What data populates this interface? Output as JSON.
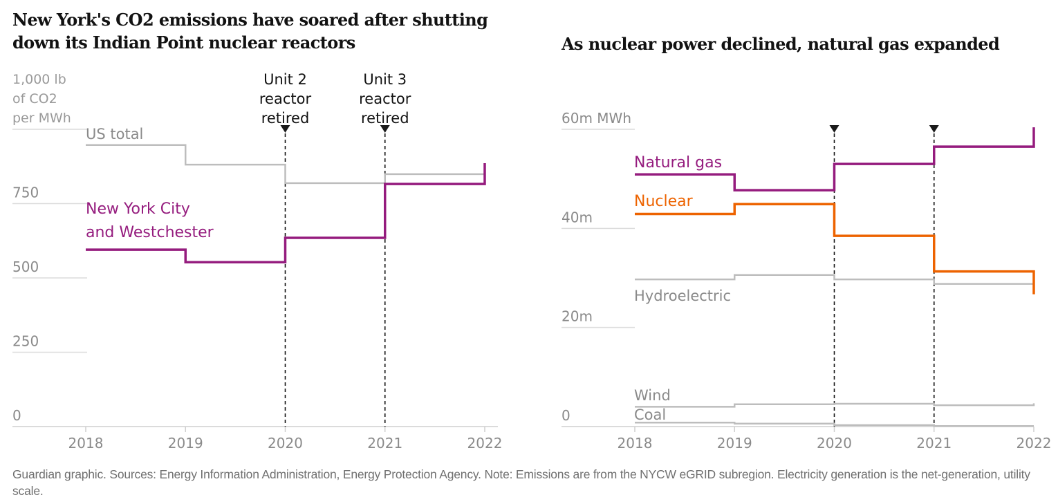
{
  "titles": {
    "left": "New York's CO2 emissions have soared after shutting down its Indian Point nuclear reactors",
    "right": "As nuclear power declined, natural gas expanded"
  },
  "footer": "Guardian graphic. Sources: Energy Information Administration, Energy Protection Agency. Note: Emissions are from the NYCW eGRID subregion. Electricity generation is the net-generation, utility scale.",
  "colors": {
    "purple": "#951c7e",
    "orange": "#ed6300",
    "gray_line": "#bdbdbd",
    "grid": "#dcdcdc",
    "annotation": "#121212"
  },
  "chart_data": [
    {
      "type": "line",
      "step": true,
      "title": "New York's CO2 emissions have soared after shutting down its Indian Point nuclear reactors",
      "ylabel": "1,000 lb of CO2 per MWh",
      "ylabel_lines": [
        "1,000 lb",
        "of CO2",
        "per MWh"
      ],
      "xlabel": "",
      "x": [
        2018,
        2019,
        2020,
        2021,
        2022
      ],
      "xlim": [
        2018,
        2022
      ],
      "ylim": [
        0,
        1000
      ],
      "yticks": [
        0,
        250,
        500,
        750,
        1000
      ],
      "ytick_labels": [
        "0",
        "250",
        "500",
        "750",
        ""
      ],
      "xtick_labels": [
        "2018",
        "2019",
        "2020",
        "2021",
        "2022"
      ],
      "grid": true,
      "series": [
        {
          "name": "US total",
          "label_lines": [
            "US total"
          ],
          "color_key": "gray_line",
          "values": [
            947,
            881,
            819,
            849
          ],
          "end_value": null
        },
        {
          "name": "New York City and Westchester",
          "label_lines": [
            "New York City",
            "and Westchester"
          ],
          "color_key": "purple",
          "values": [
            595,
            553,
            635,
            816
          ],
          "end_value": 886
        }
      ],
      "annotations": [
        {
          "x": 2020,
          "lines": [
            "Unit 2",
            "reactor",
            "retired"
          ]
        },
        {
          "x": 2021,
          "lines": [
            "Unit 3",
            "reactor",
            "retired"
          ]
        }
      ]
    },
    {
      "type": "line",
      "step": true,
      "title": "As nuclear power declined, natural gas expanded",
      "ylabel": "MWh",
      "xlabel": "",
      "x": [
        2018,
        2019,
        2020,
        2021,
        2022
      ],
      "xlim": [
        2018,
        2022
      ],
      "ylim": [
        0,
        60
      ],
      "yticks": [
        0,
        20,
        40,
        60
      ],
      "ytick_labels": [
        "0",
        "20m",
        "40m",
        "60m MWh"
      ],
      "xtick_labels": [
        "2018",
        "2019",
        "2020",
        "2021",
        "2022"
      ],
      "grid": true,
      "series": [
        {
          "name": "Natural gas",
          "color_key": "purple",
          "values": [
            50.9,
            47.7,
            53.0,
            56.5
          ],
          "end_value": 60.4
        },
        {
          "name": "Nuclear",
          "color_key": "orange",
          "values": [
            42.9,
            44.9,
            38.5,
            31.3
          ],
          "end_value": 26.7
        },
        {
          "name": "Hydroelectric",
          "color_key": "gray_line",
          "values": [
            29.7,
            30.6,
            29.7,
            28.8
          ],
          "end_value": null
        },
        {
          "name": "Wind",
          "color_key": "gray_line",
          "values": [
            4.0,
            4.5,
            4.6,
            4.3
          ],
          "end_value": 4.7
        },
        {
          "name": "Coal",
          "color_key": "gray_line",
          "values": [
            0.8,
            0.6,
            0.3,
            0.1
          ],
          "end_value": null
        }
      ],
      "annotations": [
        {
          "x": 2020,
          "lines": []
        },
        {
          "x": 2021,
          "lines": []
        }
      ]
    }
  ]
}
